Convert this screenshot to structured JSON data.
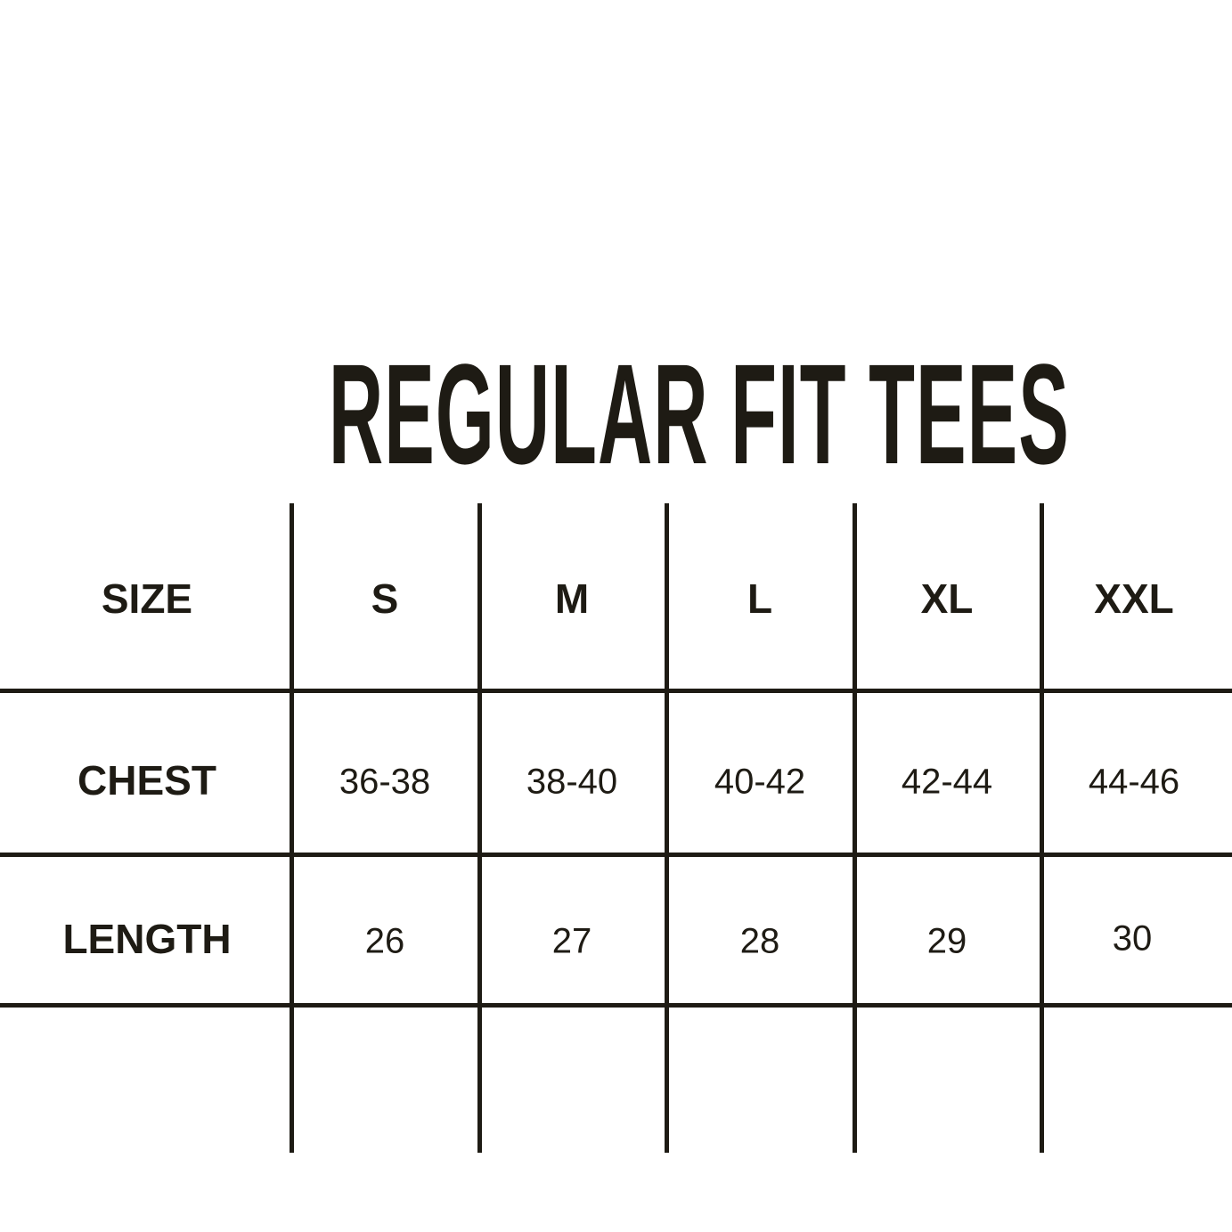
{
  "title": "REGULAR FIT TEES",
  "line_color": "#1e1b14",
  "table": {
    "columns": [
      "SIZE",
      "S",
      "M",
      "L",
      "XL",
      "XXL"
    ],
    "rows": [
      {
        "label": "CHEST",
        "values": [
          "36-38",
          "38-40",
          "40-42",
          "42-44",
          "44-46"
        ]
      },
      {
        "label": "LENGTH",
        "values": [
          "26",
          "27",
          "28",
          "29",
          "30"
        ]
      }
    ]
  }
}
